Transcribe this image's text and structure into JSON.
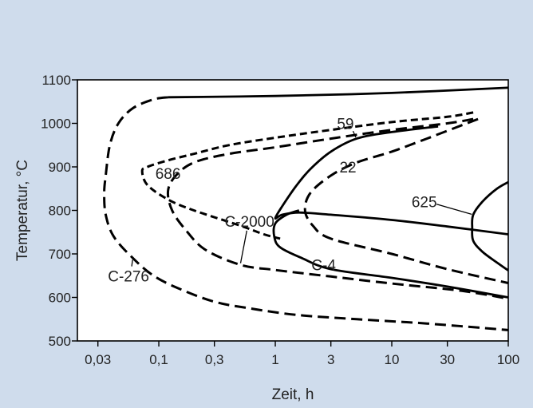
{
  "chart_data": {
    "type": "line",
    "title": "",
    "xlabel": "Zeit, h",
    "ylabel": "Temperatur, °C",
    "x_scale": "log",
    "xlim": [
      0.02,
      100
    ],
    "ylim": [
      500,
      1100
    ],
    "x_ticks": [
      0.03,
      0.1,
      0.3,
      1,
      3,
      10,
      30,
      100
    ],
    "x_tick_labels": [
      "0,03",
      "0,1",
      "0,3",
      "1",
      "3",
      "10",
      "30",
      "100"
    ],
    "y_ticks": [
      500,
      600,
      700,
      800,
      900,
      1000,
      1100
    ],
    "y_tick_labels": [
      "500",
      "600",
      "700",
      "800",
      "900",
      "1000",
      "1100"
    ],
    "grid": false,
    "series": [
      {
        "name": "C-276",
        "style": "dash-long",
        "points": [
          [
            0.12,
            1060
          ],
          [
            0.09,
            1055
          ],
          [
            0.06,
            1035
          ],
          [
            0.045,
            1000
          ],
          [
            0.038,
            950
          ],
          [
            0.035,
            880
          ],
          [
            0.034,
            840
          ],
          [
            0.035,
            790
          ],
          [
            0.041,
            740
          ],
          [
            0.06,
            690
          ],
          [
            0.09,
            650
          ],
          [
            0.15,
            620
          ],
          [
            0.3,
            590
          ],
          [
            0.6,
            575
          ],
          [
            1.5,
            560
          ],
          [
            5,
            550
          ],
          [
            20,
            540
          ],
          [
            100,
            525
          ]
        ],
        "label_point": [
          0.055,
          650
        ]
      },
      {
        "name": "686",
        "style": "dash-short",
        "points": [
          [
            50,
            1025
          ],
          [
            30,
            1015
          ],
          [
            10,
            1003
          ],
          [
            3,
            985
          ],
          [
            1,
            967
          ],
          [
            0.4,
            950
          ],
          [
            0.2,
            930
          ],
          [
            0.12,
            915
          ],
          [
            0.08,
            900
          ],
          [
            0.072,
            890
          ],
          [
            0.08,
            858
          ],
          [
            0.12,
            825
          ],
          [
            0.2,
            800
          ],
          [
            0.5,
            765
          ],
          [
            0.8,
            745
          ],
          [
            1.1,
            735
          ]
        ],
        "label_point": [
          0.12,
          885
        ]
      },
      {
        "name": "C-2000",
        "style": "dash-long",
        "points": [
          [
            50,
            1010
          ],
          [
            30,
            1000
          ],
          [
            10,
            985
          ],
          [
            3,
            965
          ],
          [
            1,
            945
          ],
          [
            0.4,
            930
          ],
          [
            0.2,
            910
          ],
          [
            0.14,
            880
          ],
          [
            0.12,
            845
          ],
          [
            0.13,
            800
          ],
          [
            0.17,
            755
          ],
          [
            0.25,
            710
          ],
          [
            0.5,
            675
          ],
          [
            1,
            663
          ],
          [
            3,
            648
          ],
          [
            10,
            632
          ],
          [
            40,
            615
          ],
          [
            100,
            597
          ]
        ],
        "label_point": [
          0.6,
          775
        ]
      },
      {
        "name": "59",
        "style": "solid",
        "points": [
          [
            25,
            993
          ],
          [
            10,
            980
          ],
          [
            5,
            965
          ],
          [
            3,
            935
          ],
          [
            2,
            895
          ],
          [
            1.5,
            855
          ],
          [
            1.15,
            810
          ],
          [
            1,
            782
          ],
          [
            1.15,
            790
          ],
          [
            1.6,
            795
          ],
          [
            3,
            790
          ],
          [
            10,
            778
          ],
          [
            30,
            763
          ],
          [
            100,
            745
          ]
        ],
        "label_point": [
          4,
          1000
        ]
      },
      {
        "name": "22",
        "style": "dash-long",
        "points": [
          [
            55,
            1010
          ],
          [
            20,
            965
          ],
          [
            10,
            935
          ],
          [
            5,
            910
          ],
          [
            3,
            880
          ],
          [
            2,
            840
          ],
          [
            1.8,
            800
          ],
          [
            2.1,
            765
          ],
          [
            3,
            735
          ],
          [
            10,
            700
          ],
          [
            30,
            665
          ],
          [
            100,
            633
          ]
        ],
        "label_point": [
          4.2,
          900
        ]
      },
      {
        "name": "C-4",
        "style": "solid",
        "points": [
          [
            1.6,
            800
          ],
          [
            1.25,
            790
          ],
          [
            1,
            770
          ],
          [
            0.98,
            740
          ],
          [
            1.1,
            715
          ],
          [
            1.7,
            690
          ],
          [
            3,
            665
          ],
          [
            10,
            645
          ],
          [
            30,
            625
          ],
          [
            100,
            600
          ]
        ],
        "label_point": [
          2.6,
          675
        ]
      },
      {
        "name": "625",
        "style": "solid",
        "points": [
          [
            100,
            865
          ],
          [
            80,
            850
          ],
          [
            60,
            820
          ],
          [
            50,
            790
          ],
          [
            49,
            760
          ],
          [
            50,
            730
          ],
          [
            60,
            705
          ],
          [
            80,
            680
          ],
          [
            100,
            662
          ]
        ],
        "label_point": [
          19,
          820
        ]
      },
      {
        "name": "",
        "style": "solid",
        "points": [
          [
            0.12,
            1060
          ],
          [
            1,
            1063
          ],
          [
            10,
            1070
          ],
          [
            100,
            1082
          ]
        ]
      }
    ]
  }
}
